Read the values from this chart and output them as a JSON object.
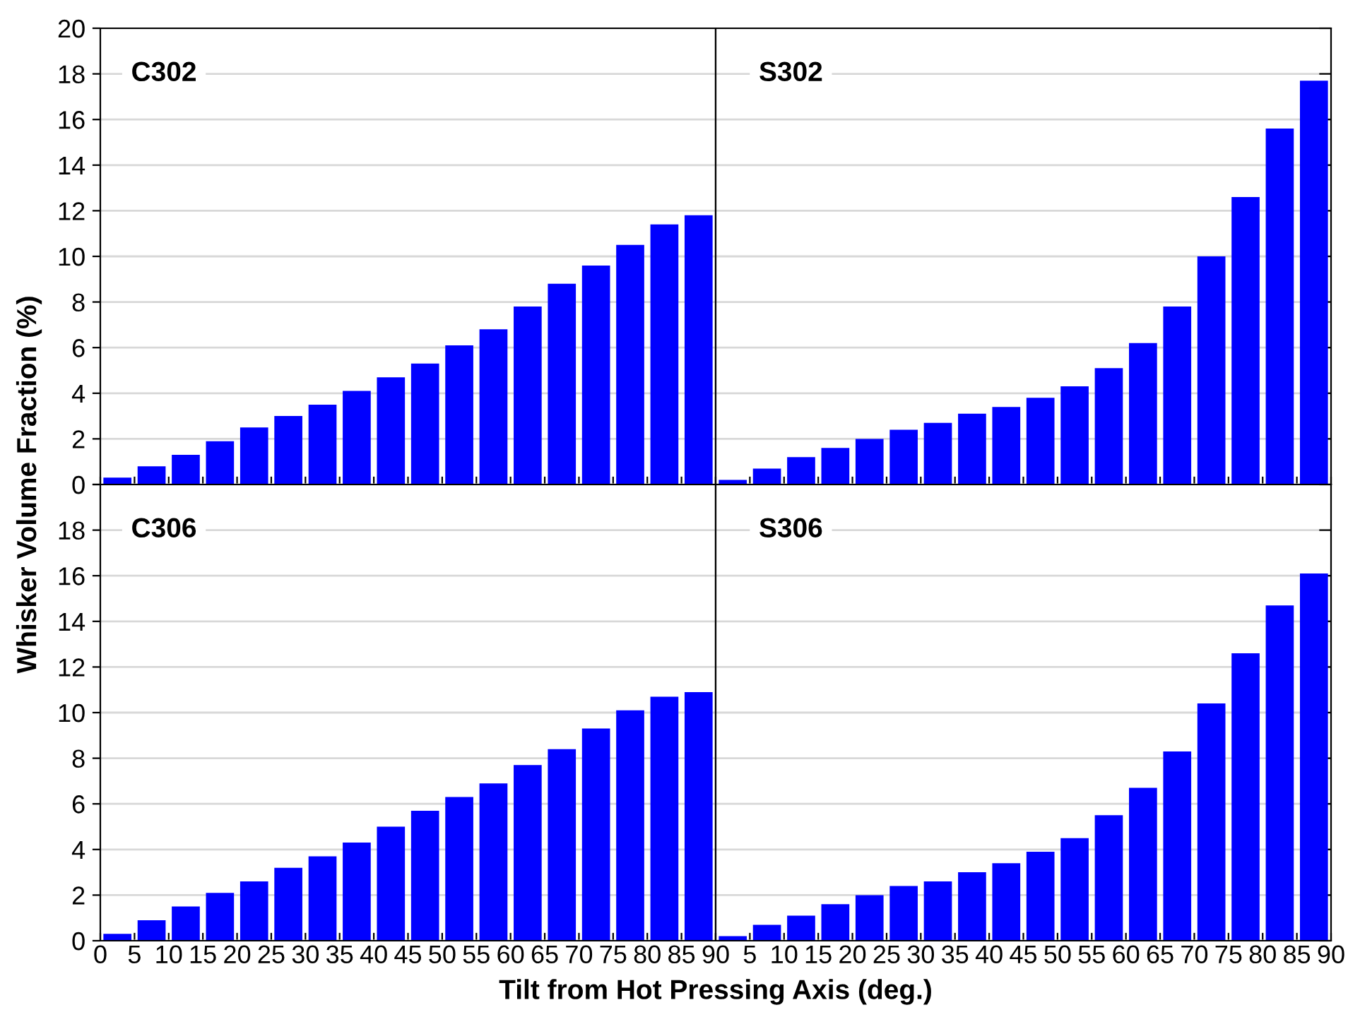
{
  "chart_data": [
    {
      "type": "histogram",
      "title": "C302",
      "ylabel": "Whisker Volume Fraction (%)",
      "bins": [
        0,
        5,
        10,
        15,
        20,
        25,
        30,
        35,
        40,
        45,
        50,
        55,
        60,
        65,
        70,
        75,
        80,
        85,
        90
      ],
      "values": [
        0.3,
        0.8,
        1.3,
        1.9,
        2.5,
        3.0,
        3.5,
        4.1,
        4.7,
        5.3,
        6.1,
        6.8,
        7.8,
        8.8,
        9.6,
        10.5,
        11.4,
        11.8
      ],
      "color": "#0000ff",
      "xlim": [
        0,
        90
      ],
      "xticks": [
        0,
        5,
        10,
        15,
        20,
        25,
        30,
        35,
        40,
        45,
        50,
        55,
        60,
        65,
        70,
        75,
        80,
        85,
        90
      ],
      "ylim": [
        0,
        20
      ],
      "yticks": [
        0,
        2,
        4,
        6,
        8,
        10,
        12,
        14,
        16,
        18,
        20
      ],
      "grid": "y",
      "tick_labels": "y"
    },
    {
      "type": "histogram",
      "title": "S302",
      "bins": [
        0,
        5,
        10,
        15,
        20,
        25,
        30,
        35,
        40,
        45,
        50,
        55,
        60,
        65,
        70,
        75,
        80,
        85,
        90
      ],
      "values": [
        0.2,
        0.7,
        1.2,
        1.6,
        2.0,
        2.4,
        2.7,
        3.1,
        3.4,
        3.8,
        4.3,
        5.1,
        6.2,
        7.8,
        10.0,
        12.6,
        15.6,
        17.7
      ],
      "color": "#0000ff",
      "xlim": [
        0,
        90
      ],
      "xticks": [
        0,
        5,
        10,
        15,
        20,
        25,
        30,
        35,
        40,
        45,
        50,
        55,
        60,
        65,
        70,
        75,
        80,
        85,
        90
      ],
      "ylim": [
        0,
        20
      ],
      "yticks": [
        0,
        2,
        4,
        6,
        8,
        10,
        12,
        14,
        16,
        18,
        20
      ],
      "grid": "y",
      "tick_labels": false
    },
    {
      "type": "histogram",
      "title": "C306",
      "xlabel": "Tilt from Hot Pressing Axis (deg.)",
      "bins": [
        0,
        5,
        10,
        15,
        20,
        25,
        30,
        35,
        40,
        45,
        50,
        55,
        60,
        65,
        70,
        75,
        80,
        85,
        90
      ],
      "values": [
        0.3,
        0.9,
        1.5,
        2.1,
        2.6,
        3.2,
        3.7,
        4.3,
        5.0,
        5.7,
        6.3,
        6.9,
        7.7,
        8.4,
        9.3,
        10.1,
        10.7,
        10.9
      ],
      "color": "#0000ff",
      "xlim": [
        0,
        90
      ],
      "xticks": [
        0,
        5,
        10,
        15,
        20,
        25,
        30,
        35,
        40,
        45,
        50,
        55,
        60,
        65,
        70,
        75,
        80,
        85,
        90
      ],
      "ylim": [
        0,
        20
      ],
      "yticks": [
        0,
        2,
        4,
        6,
        8,
        10,
        12,
        14,
        16,
        18,
        {
          "value": 20,
          "label": null
        }
      ],
      "grid": "y"
    },
    {
      "type": "histogram",
      "title": "S306",
      "bins": [
        0,
        5,
        10,
        15,
        20,
        25,
        30,
        35,
        40,
        45,
        50,
        55,
        60,
        65,
        70,
        75,
        80,
        85,
        90
      ],
      "values": [
        0.2,
        0.7,
        1.1,
        1.6,
        2.0,
        2.4,
        2.6,
        3.0,
        3.4,
        3.9,
        4.5,
        5.5,
        6.7,
        8.3,
        10.4,
        12.6,
        14.7,
        16.1
      ],
      "color": "#0000ff",
      "xlim": [
        0,
        90
      ],
      "xticks": [
        {
          "value": 0,
          "label": null
        },
        5,
        10,
        15,
        20,
        25,
        30,
        35,
        40,
        45,
        50,
        55,
        60,
        65,
        70,
        75,
        80,
        85,
        90
      ],
      "ylim": [
        0,
        20
      ],
      "yticks": [
        0,
        2,
        4,
        6,
        8,
        10,
        12,
        14,
        16,
        18,
        {
          "value": 20,
          "label": null
        }
      ],
      "grid": "y",
      "tick_labels": "x"
    }
  ]
}
